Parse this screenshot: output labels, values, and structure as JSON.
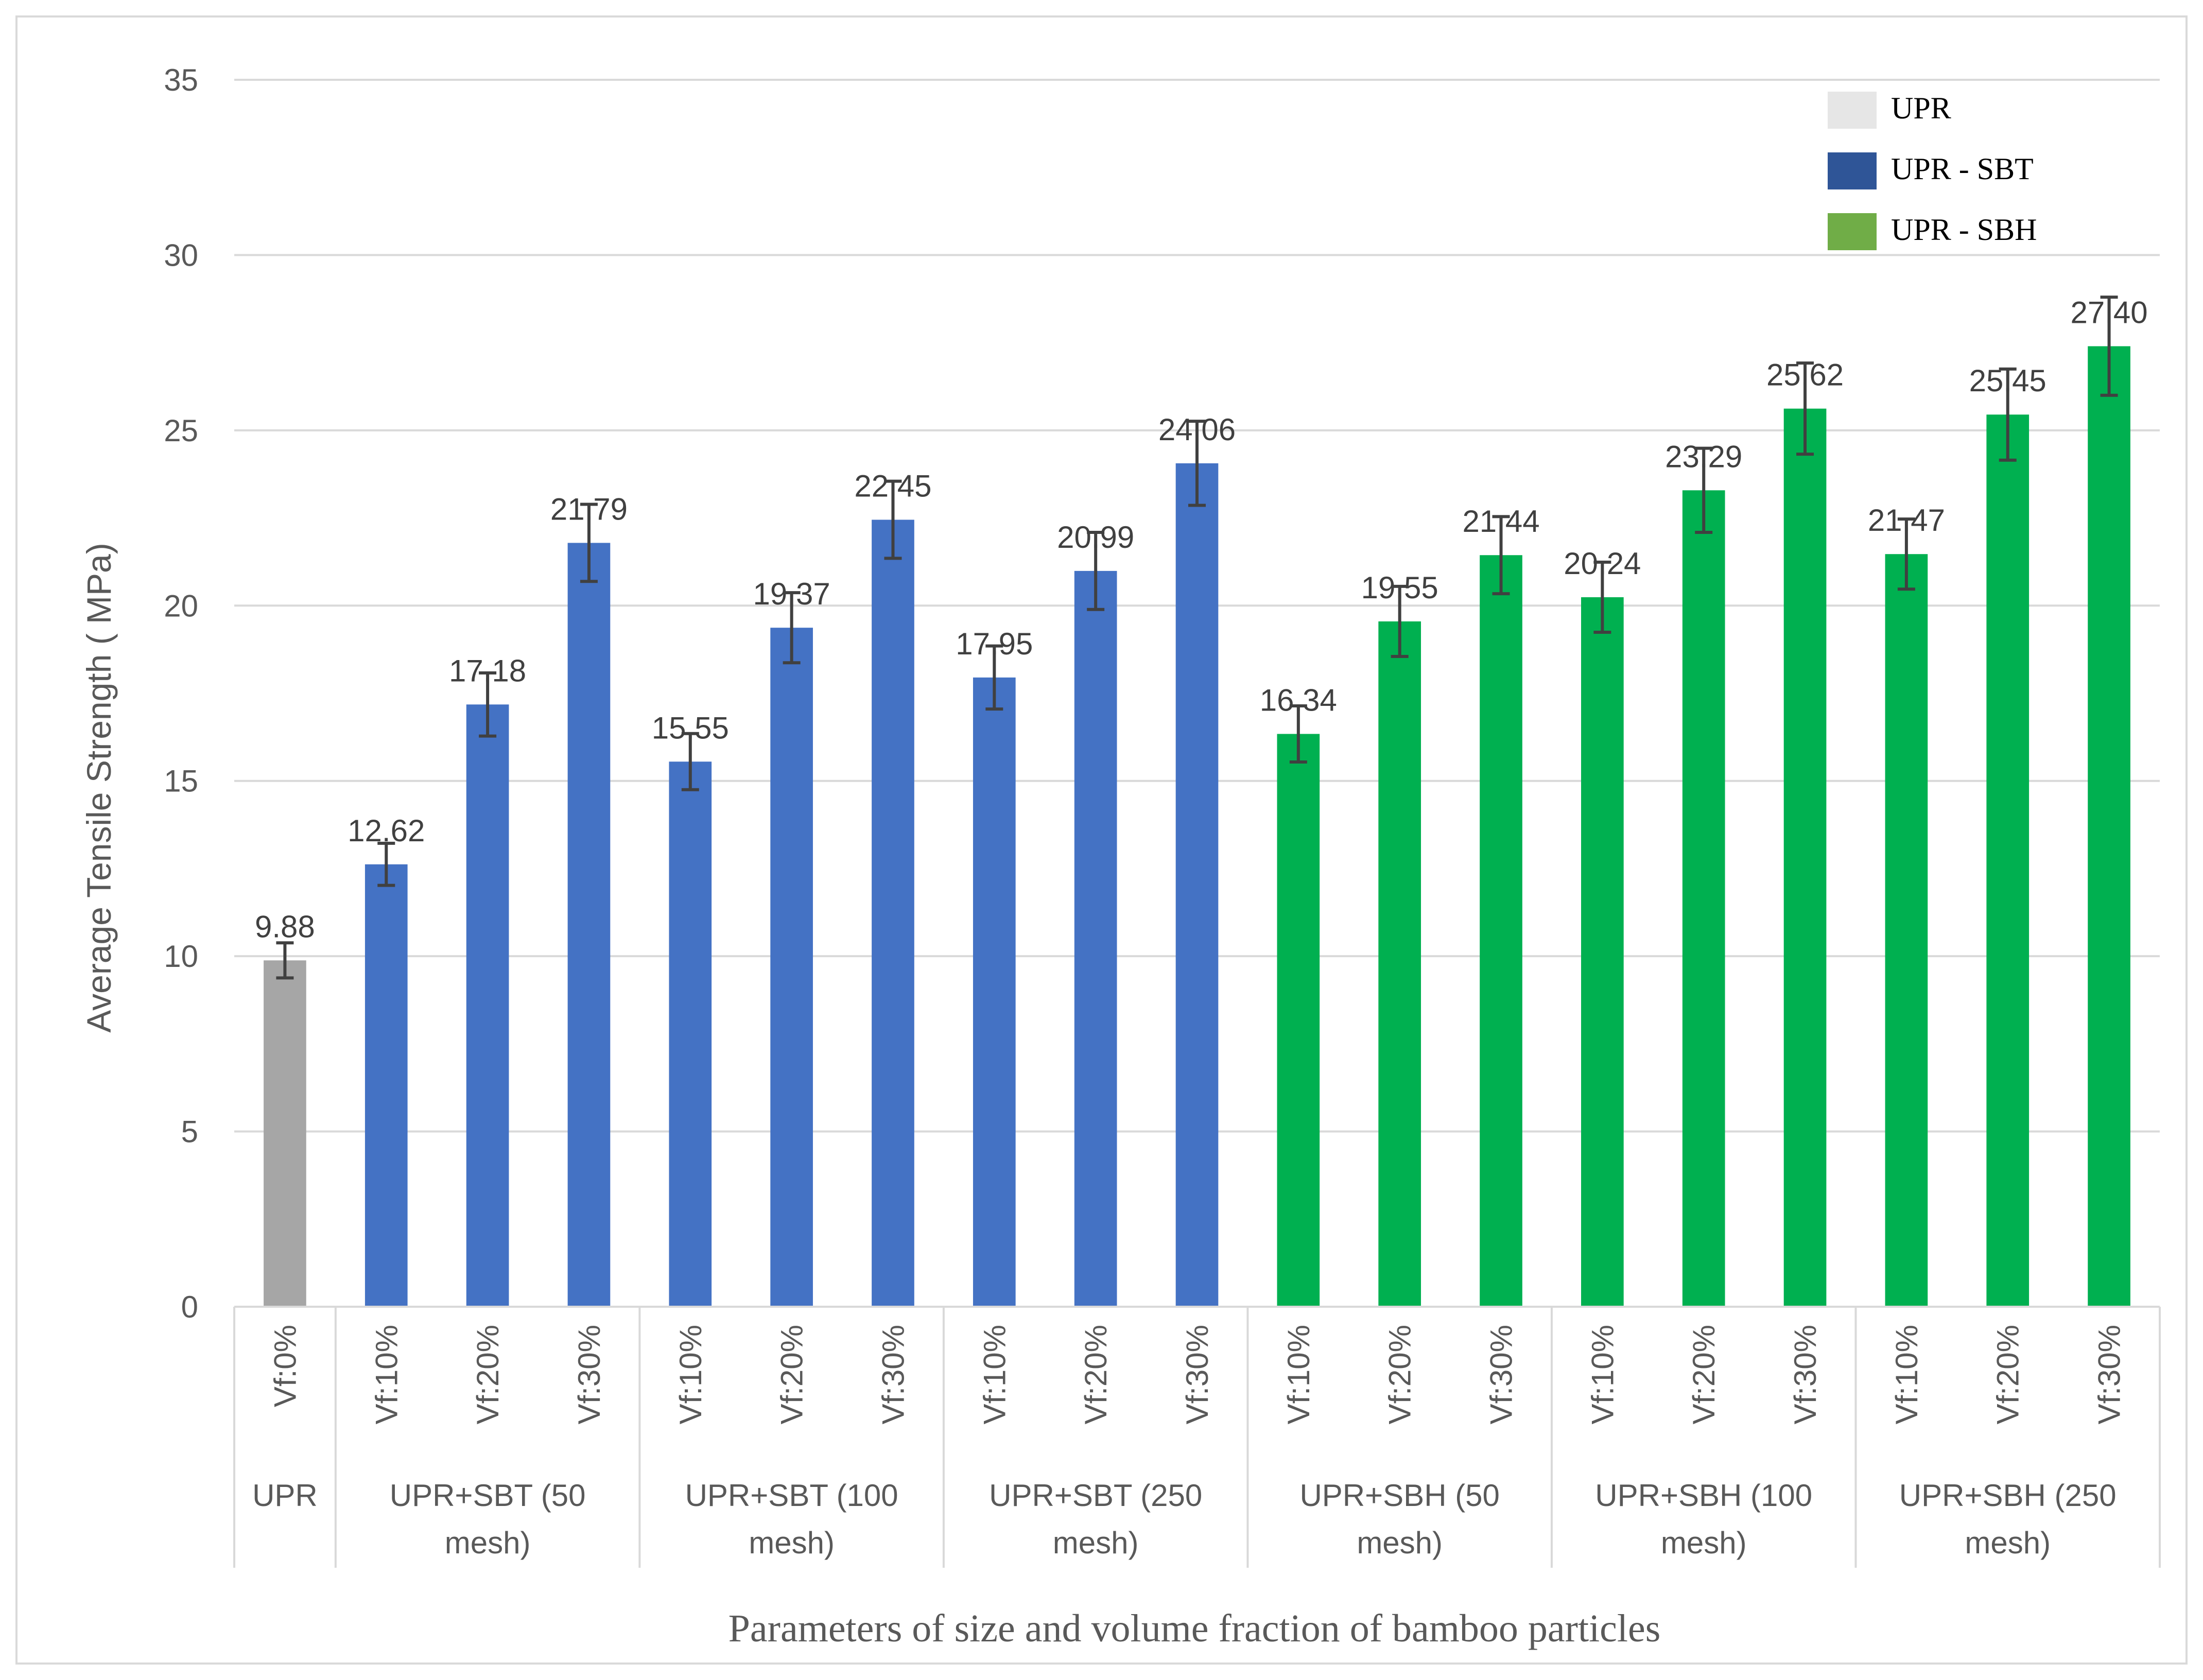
{
  "chart_data": {
    "type": "bar",
    "title": "",
    "ylabel": "Average Tensile Strength ( MPa)",
    "xlabel": "Parameters of size and volume fraction of bamboo particles",
    "ylim": [
      0,
      35
    ],
    "yticks": [
      0,
      5,
      10,
      15,
      20,
      25,
      30,
      35
    ],
    "grid": true,
    "legend_position": "top-right",
    "legend": [
      {
        "label": "UPR",
        "color": "#e6e6e6"
      },
      {
        "label": "UPR - SBT",
        "color": "#2f5597"
      },
      {
        "label": "UPR - SBH",
        "color": "#70ad47"
      }
    ],
    "groups": [
      {
        "label_lines": [
          "UPR"
        ],
        "series": "UPR",
        "color": "#a6a6a6",
        "bars": [
          {
            "category": "Vf:0%",
            "value": 9.88,
            "label": "9.88",
            "error": 0.5
          }
        ]
      },
      {
        "label_lines": [
          "UPR+SBT (50",
          "mesh)"
        ],
        "series": "UPR - SBT",
        "color": "#4472c4",
        "bars": [
          {
            "category": "Vf:10%",
            "value": 12.62,
            "label": "12.62",
            "error": 0.6
          },
          {
            "category": "Vf:20%",
            "value": 17.18,
            "label": "17.18",
            "error": 0.9
          },
          {
            "category": "Vf:30%",
            "value": 21.79,
            "label": "21.79",
            "error": 1.1
          }
        ]
      },
      {
        "label_lines": [
          "UPR+SBT (100",
          "mesh)"
        ],
        "series": "UPR - SBT",
        "color": "#4472c4",
        "bars": [
          {
            "category": "Vf:10%",
            "value": 15.55,
            "label": "15.55",
            "error": 0.8
          },
          {
            "category": "Vf:20%",
            "value": 19.37,
            "label": "19.37",
            "error": 1.0
          },
          {
            "category": "Vf:30%",
            "value": 22.45,
            "label": "22.45",
            "error": 1.1
          }
        ]
      },
      {
        "label_lines": [
          "UPR+SBT (250",
          "mesh)"
        ],
        "series": "UPR - SBT",
        "color": "#4472c4",
        "bars": [
          {
            "category": "Vf:10%",
            "value": 17.95,
            "label": "17.95",
            "error": 0.9
          },
          {
            "category": "Vf:20%",
            "value": 20.99,
            "label": "20.99",
            "error": 1.1
          },
          {
            "category": "Vf:30%",
            "value": 24.06,
            "label": "24.06",
            "error": 1.2
          }
        ]
      },
      {
        "label_lines": [
          "UPR+SBH (50",
          "mesh)"
        ],
        "series": "UPR - SBH",
        "color": "#00b050",
        "bars": [
          {
            "category": "Vf:10%",
            "value": 16.34,
            "label": "16.34",
            "error": 0.8
          },
          {
            "category": "Vf:20%",
            "value": 19.55,
            "label": "19.55",
            "error": 1.0
          },
          {
            "category": "Vf:30%",
            "value": 21.44,
            "label": "21.44",
            "error": 1.1
          }
        ]
      },
      {
        "label_lines": [
          "UPR+SBH (100",
          "mesh)"
        ],
        "series": "UPR - SBH",
        "color": "#00b050",
        "bars": [
          {
            "category": "Vf:10%",
            "value": 20.24,
            "label": "20.24",
            "error": 1.0
          },
          {
            "category": "Vf:20%",
            "value": 23.29,
            "label": "23.29",
            "error": 1.2
          },
          {
            "category": "Vf:30%",
            "value": 25.62,
            "label": "25.62",
            "error": 1.3
          }
        ]
      },
      {
        "label_lines": [
          "UPR+SBH (250",
          "mesh)"
        ],
        "series": "UPR - SBH",
        "color": "#00b050",
        "bars": [
          {
            "category": "Vf:10%",
            "value": 21.47,
            "label": "21.47",
            "error": 1.0
          },
          {
            "category": "Vf:20%",
            "value": 25.45,
            "label": "25.45",
            "error": 1.3
          },
          {
            "category": "Vf:30%",
            "value": 27.4,
            "label": "27.40",
            "error": 1.4
          }
        ]
      }
    ]
  },
  "colors": {
    "gridline": "#d9d9d9",
    "axis_text": "#595959",
    "error_bar": "#404040"
  }
}
